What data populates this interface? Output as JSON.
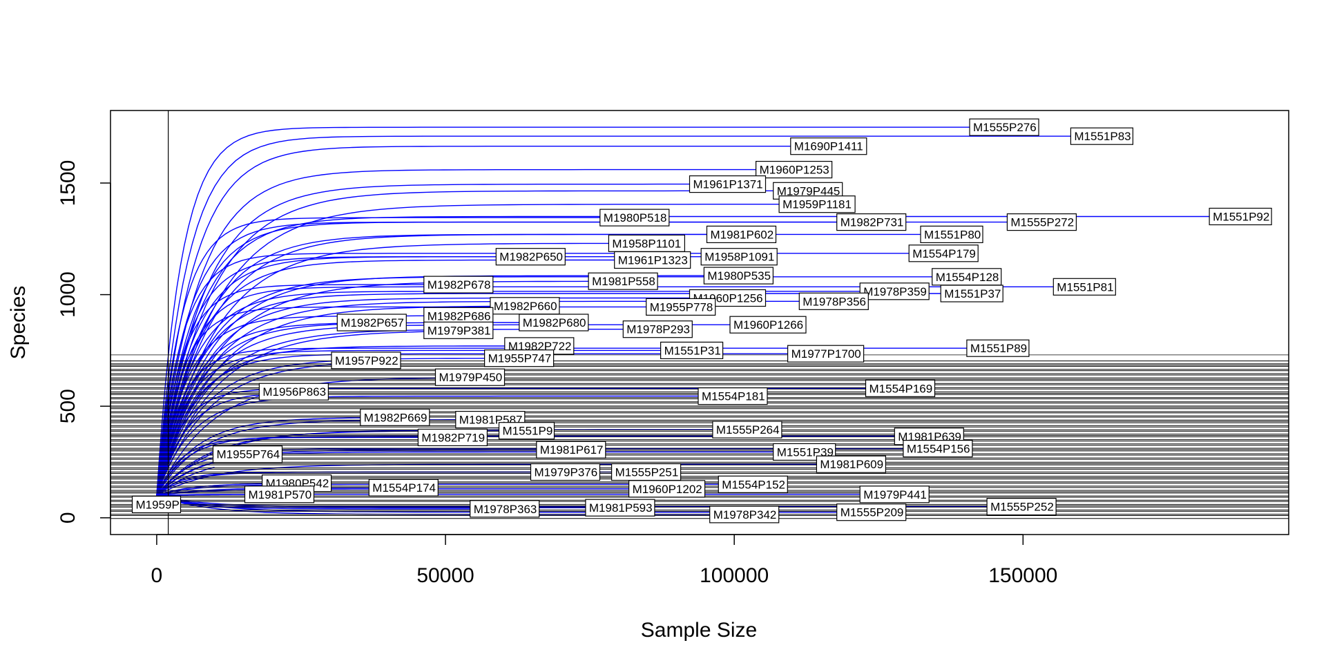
{
  "chart_data": {
    "type": "line",
    "title": "",
    "xlabel": "Sample Size",
    "ylabel": "Species",
    "xlim": [
      -8000,
      196000
    ],
    "ylim": [
      -75,
      1825
    ],
    "x_ticks": [
      0,
      50000,
      100000,
      150000
    ],
    "y_ticks": [
      0,
      500,
      1000,
      1500
    ],
    "grid": false,
    "legend": "none",
    "colors": {
      "curve": "#0000ff",
      "reference": "#000000",
      "label_fill": "#ffffff"
    },
    "reference_lines": {
      "vertical_x": 2000,
      "horizontal_band": [
        0,
        730
      ]
    },
    "series": [
      {
        "name": "M1555P276",
        "x_end": 141000,
        "y_max": 1750
      },
      {
        "name": "M1551P83",
        "x_end": 158500,
        "y_max": 1710
      },
      {
        "name": "M1690P1411",
        "x_end": 110000,
        "y_max": 1665
      },
      {
        "name": "M1960P1253",
        "x_end": 104000,
        "y_max": 1560
      },
      {
        "name": "M1961P1371",
        "x_end": 92500,
        "y_max": 1495
      },
      {
        "name": "M1979P445",
        "x_end": 107000,
        "y_max": 1465
      },
      {
        "name": "M1959P1181",
        "x_end": 108000,
        "y_max": 1405
      },
      {
        "name": "M1980P518",
        "x_end": 77000,
        "y_max": 1345
      },
      {
        "name": "M1982P731",
        "x_end": 118000,
        "y_max": 1325
      },
      {
        "name": "M1555P272",
        "x_end": 147500,
        "y_max": 1325
      },
      {
        "name": "M1551P92",
        "x_end": 182500,
        "y_max": 1350
      },
      {
        "name": "M1551P80",
        "x_end": 132500,
        "y_max": 1270
      },
      {
        "name": "M1981P602",
        "x_end": 95500,
        "y_max": 1270
      },
      {
        "name": "M1958P1101",
        "x_end": 78500,
        "y_max": 1230
      },
      {
        "name": "M1554P179",
        "x_end": 130500,
        "y_max": 1185
      },
      {
        "name": "M1982P650",
        "x_end": 59000,
        "y_max": 1170
      },
      {
        "name": "M1958P1091",
        "x_end": 94500,
        "y_max": 1170
      },
      {
        "name": "M1961P1323",
        "x_end": 79500,
        "y_max": 1155
      },
      {
        "name": "M1554P128",
        "x_end": 134500,
        "y_max": 1080
      },
      {
        "name": "M1980P535",
        "x_end": 95000,
        "y_max": 1085
      },
      {
        "name": "M1981P558",
        "x_end": 75000,
        "y_max": 1060
      },
      {
        "name": "M1982P678",
        "x_end": 46500,
        "y_max": 1045
      },
      {
        "name": "M1551P81",
        "x_end": 155500,
        "y_max": 1035
      },
      {
        "name": "M1978P359",
        "x_end": 122000,
        "y_max": 1015
      },
      {
        "name": "M1551P37",
        "x_end": 136000,
        "y_max": 1005
      },
      {
        "name": "M1960P1256",
        "x_end": 92500,
        "y_max": 985
      },
      {
        "name": "M1978P356",
        "x_end": 111500,
        "y_max": 970
      },
      {
        "name": "M1982P660",
        "x_end": 58000,
        "y_max": 950
      },
      {
        "name": "M1955P778",
        "x_end": 85000,
        "y_max": 945
      },
      {
        "name": "M1982P686",
        "x_end": 46500,
        "y_max": 905
      },
      {
        "name": "M1982P657",
        "x_end": 31500,
        "y_max": 875
      },
      {
        "name": "M1982P680",
        "x_end": 63000,
        "y_max": 875
      },
      {
        "name": "M1960P1266",
        "x_end": 99500,
        "y_max": 865
      },
      {
        "name": "M1978P293",
        "x_end": 81000,
        "y_max": 845
      },
      {
        "name": "M1979P381",
        "x_end": 46500,
        "y_max": 840
      },
      {
        "name": "M1551P89",
        "x_end": 140500,
        "y_max": 760
      },
      {
        "name": "M1551P31",
        "x_end": 87500,
        "y_max": 750
      },
      {
        "name": "M1977P1700",
        "x_end": 109500,
        "y_max": 735
      },
      {
        "name": "M1982P722",
        "x_end": 60500,
        "y_max": 770
      },
      {
        "name": "M1955P747",
        "x_end": 57000,
        "y_max": 715
      },
      {
        "name": "M1957P922",
        "x_end": 30500,
        "y_max": 705
      },
      {
        "name": "M1979P450",
        "x_end": 48500,
        "y_max": 630
      },
      {
        "name": "M1554P169",
        "x_end": 123000,
        "y_max": 580
      },
      {
        "name": "M1956P863",
        "x_end": 18000,
        "y_max": 565
      },
      {
        "name": "M1554P181",
        "x_end": 94000,
        "y_max": 545
      },
      {
        "name": "M1982P669",
        "x_end": 35500,
        "y_max": 450
      },
      {
        "name": "M1981P587",
        "x_end": 52000,
        "y_max": 440
      },
      {
        "name": "M1551P9",
        "x_end": 59500,
        "y_max": 390
      },
      {
        "name": "M1555P264",
        "x_end": 96500,
        "y_max": 395
      },
      {
        "name": "M1982P719",
        "x_end": 45500,
        "y_max": 360
      },
      {
        "name": "M1981P639",
        "x_end": 128000,
        "y_max": 365
      },
      {
        "name": "M1554P156",
        "x_end": 129500,
        "y_max": 310
      },
      {
        "name": "M1551P39",
        "x_end": 107000,
        "y_max": 295
      },
      {
        "name": "M1981P617",
        "x_end": 66000,
        "y_max": 305
      },
      {
        "name": "M1955P764",
        "x_end": 10000,
        "y_max": 285
      },
      {
        "name": "M1981P609",
        "x_end": 114500,
        "y_max": 240
      },
      {
        "name": "M1979P376",
        "x_end": 65000,
        "y_max": 205
      },
      {
        "name": "M1555P251",
        "x_end": 79000,
        "y_max": 205
      },
      {
        "name": "M1980P542",
        "x_end": 18500,
        "y_max": 155
      },
      {
        "name": "M1554P152",
        "x_end": 97500,
        "y_max": 150
      },
      {
        "name": "M1554P174",
        "x_end": 37000,
        "y_max": 135
      },
      {
        "name": "M1960P1202",
        "x_end": 82000,
        "y_max": 130
      },
      {
        "name": "M1981P570",
        "x_end": 15500,
        "y_max": 105
      },
      {
        "name": "M1979P441",
        "x_end": 122000,
        "y_max": 105
      },
      {
        "name": "M1959P",
        "x_end": -4000,
        "y_max": 60
      },
      {
        "name": "M1978P363",
        "x_end": 54500,
        "y_max": 40
      },
      {
        "name": "M1981P593",
        "x_end": 74500,
        "y_max": 45
      },
      {
        "name": "M1555P252",
        "x_end": 144000,
        "y_max": 50
      },
      {
        "name": "M1978P342",
        "x_end": 96000,
        "y_max": 15
      },
      {
        "name": "M1555P209",
        "x_end": 118000,
        "y_max": 25
      }
    ]
  }
}
